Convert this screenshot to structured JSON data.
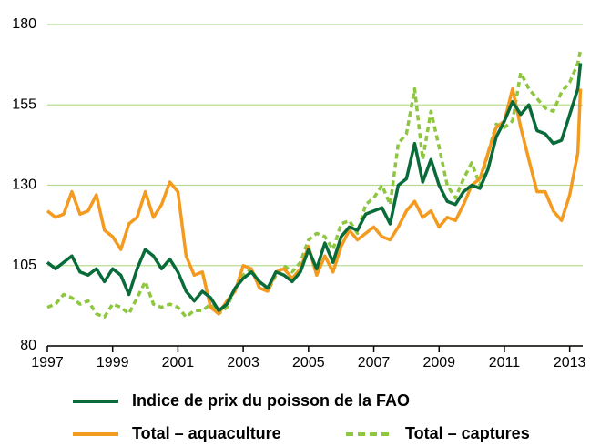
{
  "chart_data": {
    "type": "line",
    "x": [
      1997,
      1997.25,
      1997.5,
      1997.75,
      1998,
      1998.25,
      1998.5,
      1998.75,
      1999,
      1999.25,
      1999.5,
      1999.75,
      2000,
      2000.25,
      2000.5,
      2000.75,
      2001,
      2001.25,
      2001.5,
      2001.75,
      2002,
      2002.25,
      2002.5,
      2002.75,
      2003,
      2003.25,
      2003.5,
      2003.75,
      2004,
      2004.25,
      2004.5,
      2004.75,
      2005,
      2005.25,
      2005.5,
      2005.75,
      2006,
      2006.25,
      2006.5,
      2006.75,
      2007,
      2007.25,
      2007.5,
      2007.75,
      2008,
      2008.25,
      2008.5,
      2008.75,
      2009,
      2009.25,
      2009.5,
      2009.75,
      2010,
      2010.25,
      2010.5,
      2010.75,
      2011,
      2011.25,
      2011.5,
      2011.75,
      2012,
      2012.25,
      2012.5,
      2012.75,
      2013,
      2013.25,
      2013.33
    ],
    "series": [
      {
        "name": "Indice de prix du poisson de la FAO",
        "color": "#0a6b3a",
        "dashed": false,
        "values": [
          106,
          104,
          106,
          108,
          103,
          102,
          104,
          100,
          104,
          102,
          96,
          104,
          110,
          108,
          104,
          107,
          103,
          97,
          94,
          97,
          95,
          91,
          93,
          98,
          101,
          103,
          100,
          98,
          103,
          102,
          100,
          103,
          110,
          104,
          112,
          106,
          114,
          117,
          116,
          121,
          122,
          123,
          118,
          130,
          132,
          143,
          131,
          138,
          130,
          125,
          124,
          128,
          130,
          129,
          135,
          145,
          150,
          156,
          152,
          155,
          147,
          146,
          143,
          144,
          152,
          160,
          168
        ]
      },
      {
        "name": "Total – aquaculture",
        "color": "#f39a1f",
        "dashed": false,
        "values": [
          122,
          120,
          121,
          128,
          121,
          122,
          127,
          116,
          114,
          110,
          118,
          120,
          128,
          120,
          124,
          131,
          128,
          108,
          102,
          103,
          92,
          90,
          94,
          97,
          105,
          104,
          98,
          97,
          103,
          104,
          101,
          104,
          111,
          102,
          108,
          103,
          111,
          116,
          113,
          115,
          117,
          114,
          113,
          117,
          122,
          125,
          120,
          122,
          117,
          120,
          119,
          124,
          130,
          132,
          140,
          148,
          150,
          160,
          148,
          138,
          128,
          128,
          122,
          119,
          127,
          140,
          160
        ]
      },
      {
        "name": "Total – captures",
        "color": "#8dc63f",
        "dashed": true,
        "values": [
          92,
          93,
          96,
          95,
          93,
          94,
          90,
          89,
          93,
          92,
          90,
          95,
          100,
          93,
          92,
          93,
          92,
          89,
          91,
          91,
          93,
          90,
          92,
          98,
          102,
          104,
          99,
          97,
          102,
          105,
          103,
          106,
          113,
          115,
          114,
          110,
          118,
          119,
          115,
          124,
          126,
          130,
          124,
          143,
          146,
          160,
          138,
          153,
          142,
          130,
          126,
          132,
          137,
          130,
          140,
          149,
          148,
          150,
          165,
          160,
          157,
          154,
          153,
          159,
          162,
          168,
          172
        ]
      }
    ],
    "xlim": [
      1997,
      2013.4
    ],
    "xticks": [
      1997,
      1999,
      2001,
      2003,
      2005,
      2007,
      2009,
      2011,
      2013
    ],
    "ylim": [
      80,
      180
    ],
    "yticks": [
      80,
      105,
      130,
      155,
      180
    ],
    "grid": true
  }
}
